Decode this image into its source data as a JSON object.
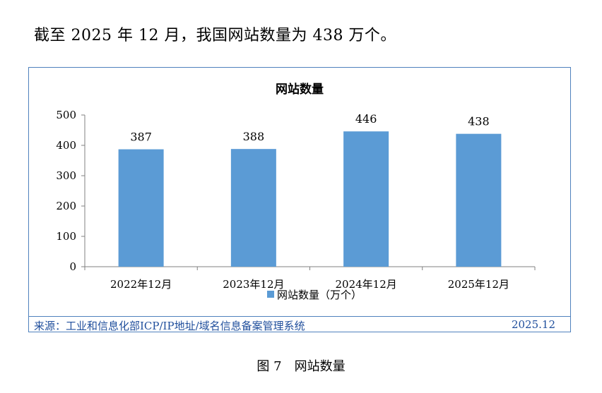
{
  "intro_text": "截至 2025 年 12 月，我国网站数量为 438 万个。",
  "chart_data": {
    "type": "bar",
    "title": "网站数量",
    "categories": [
      "2022年12月",
      "2023年12月",
      "2024年12月",
      "2025年12月"
    ],
    "series": [
      {
        "name": "网站数量（万个）",
        "values": [
          387,
          388,
          446,
          438
        ]
      }
    ],
    "ylim": [
      0,
      500
    ],
    "yticks": [
      0,
      100,
      200,
      300,
      400,
      500
    ],
    "grid": false,
    "legend": "bottom",
    "bar_color": "#5b9bd5",
    "axis_color": "#808080"
  },
  "source": {
    "label": "来源：工业和信息化部ICP/IP地址/域名信息备案管理系统",
    "date": "2025.12"
  },
  "caption": "图 7　网站数量"
}
